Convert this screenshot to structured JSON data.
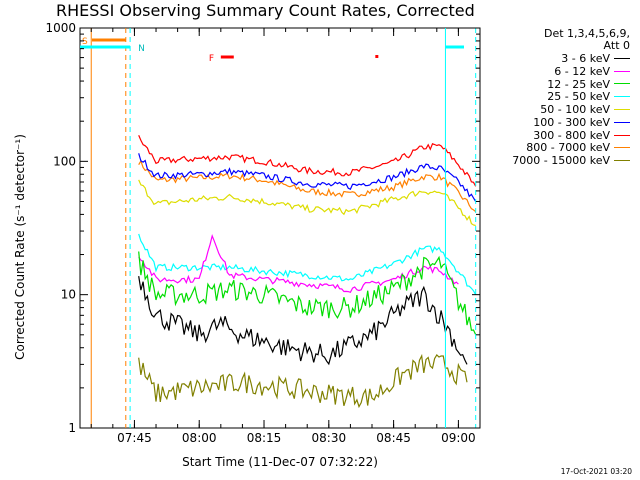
{
  "title": "RHESSI Observing Summary Count Rates, Corrected",
  "x_axis_label": "Start Time (11-Dec-07 07:32:22)",
  "y_axis_label": "Corrected Count Rate (s⁻¹ detector⁻¹)",
  "legend_header": [
    "Det 1,3,4,5,6,9,",
    "Att 0"
  ],
  "legend": [
    {
      "label": "3 - 6 keV",
      "color": "#000000"
    },
    {
      "label": "6 - 12 keV",
      "color": "#ff00ff"
    },
    {
      "label": "12 - 25 keV",
      "color": "#00dd00"
    },
    {
      "label": "25 - 50 keV",
      "color": "#00ffff"
    },
    {
      "label": "50 - 100 keV",
      "color": "#dddd00"
    },
    {
      "label": "100 - 300 keV",
      "color": "#0000ff"
    },
    {
      "label": "300 - 800 keV",
      "color": "#ff0000"
    },
    {
      "label": "800 - 7000 keV",
      "color": "#ff8000"
    },
    {
      "label": "7000 - 15000 keV",
      "color": "#808000"
    }
  ],
  "timestamp": "17-Oct-2021 03:20",
  "markers": {
    "saa": "S",
    "night": "N",
    "flare": "F"
  },
  "chart_data": {
    "type": "line",
    "title": "RHESSI Observing Summary Count Rates, Corrected",
    "xlabel": "Start Time (11-Dec-07 07:32:22)",
    "ylabel": "Corrected Count Rate (s⁻¹ detector⁻¹)",
    "y_scale": "log",
    "ylim": [
      1,
      1000
    ],
    "xlim_minutes_of_day": [
      452.4,
      545
    ],
    "x_ticks": [
      "07:45",
      "08:00",
      "08:15",
      "08:30",
      "08:45",
      "09:00"
    ],
    "y_ticks": [
      "1",
      "10",
      "100",
      "1000"
    ],
    "grid": false,
    "legend_position": "right",
    "data_gap_ends": [
      "07:44",
      "09:04"
    ],
    "series": [
      {
        "name": "800 - 7000 keV",
        "color": "#ff8000",
        "x": [
          "07:46",
          "07:50",
          "08:00",
          "08:07",
          "08:15",
          "08:25",
          "08:35",
          "08:45",
          "08:52",
          "08:56",
          "09:00",
          "09:04"
        ],
        "y": [
          100,
          72,
          75,
          78,
          72,
          60,
          56,
          64,
          77,
          76,
          58,
          42
        ]
      },
      {
        "name": "300 - 800 keV",
        "color": "#ff0000",
        "x": [
          "07:46",
          "07:50",
          "08:00",
          "08:07",
          "08:15",
          "08:25",
          "08:35",
          "08:45",
          "08:52",
          "08:56",
          "09:00",
          "09:04"
        ],
        "y": [
          150,
          100,
          105,
          108,
          100,
          85,
          82,
          98,
          128,
          130,
          95,
          65
        ]
      },
      {
        "name": "100 - 300 keV",
        "color": "#0000ff",
        "x": [
          "07:46",
          "07:50",
          "08:00",
          "08:07",
          "08:15",
          "08:25",
          "08:35",
          "08:45",
          "08:52",
          "08:56",
          "09:00",
          "09:04"
        ],
        "y": [
          110,
          78,
          80,
          84,
          78,
          68,
          65,
          76,
          92,
          88,
          70,
          50
        ]
      },
      {
        "name": "50 - 100 keV",
        "color": "#dddd00",
        "x": [
          "07:46",
          "07:50",
          "08:00",
          "08:07",
          "08:15",
          "08:25",
          "08:35",
          "08:45",
          "08:52",
          "08:56",
          "09:00",
          "09:04"
        ],
        "y": [
          70,
          48,
          52,
          54,
          50,
          44,
          42,
          52,
          60,
          58,
          45,
          33
        ]
      },
      {
        "name": "25 - 50 keV",
        "color": "#00ffff",
        "x": [
          "07:46",
          "07:50",
          "08:00",
          "08:07",
          "08:15",
          "08:25",
          "08:35",
          "08:45",
          "08:52",
          "08:56",
          "09:00",
          "09:04"
        ],
        "y": [
          28,
          16,
          16,
          16,
          15,
          14,
          13,
          17,
          22,
          22,
          15,
          10
        ]
      },
      {
        "name": "6 - 12 keV",
        "color": "#ff00ff",
        "x": [
          "07:46",
          "07:50",
          "08:00",
          "08:03",
          "08:07",
          "08:15",
          "08:25",
          "08:35",
          "08:45",
          "08:52",
          "08:56",
          "09:00"
        ],
        "y": [
          20,
          13,
          13,
          28,
          14,
          13,
          12,
          11,
          13,
          16,
          15,
          12
        ]
      },
      {
        "name": "12 - 25 keV",
        "color": "#00dd00",
        "x": [
          "07:46",
          "07:50",
          "08:00",
          "08:07",
          "08:15",
          "08:25",
          "08:35",
          "08:45",
          "08:52",
          "08:56",
          "09:00",
          "09:04"
        ],
        "y": [
          18,
          10,
          10,
          11,
          10,
          8,
          8,
          11,
          16,
          17,
          9,
          5
        ]
      },
      {
        "name": "3 - 6 keV",
        "color": "#000000",
        "x": [
          "07:46",
          "07:50",
          "08:00",
          "08:05",
          "08:10",
          "08:20",
          "08:30",
          "08:40",
          "08:47",
          "08:52",
          "08:57",
          "09:02"
        ],
        "y": [
          14,
          7,
          5,
          6,
          5,
          4,
          3.5,
          5,
          8,
          10,
          6,
          3
        ]
      },
      {
        "name": "7000 - 15000 keV",
        "color": "#808000",
        "x": [
          "07:46",
          "07:50",
          "08:00",
          "08:10",
          "08:20",
          "08:30",
          "08:40",
          "08:47",
          "08:52",
          "08:57",
          "09:02"
        ],
        "y": [
          3,
          1.8,
          2,
          2.2,
          2,
          1.8,
          1.7,
          2.5,
          3,
          3,
          2.2
        ]
      }
    ]
  }
}
